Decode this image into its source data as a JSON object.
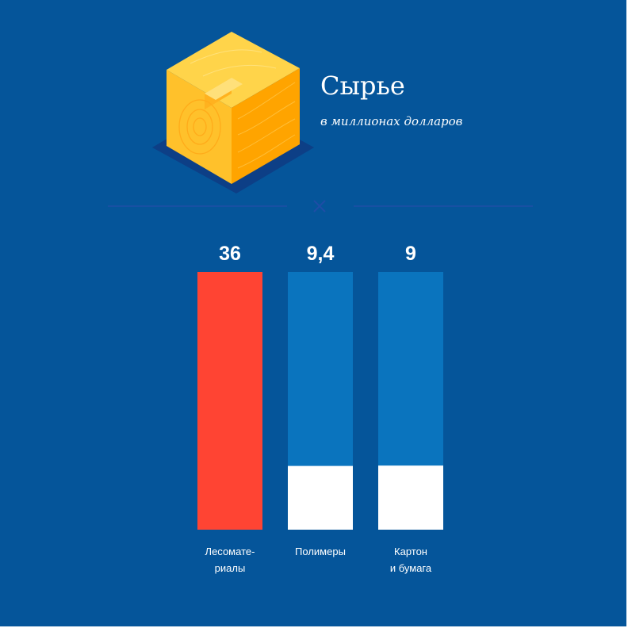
{
  "header": {
    "title": "Сырье",
    "subtitle": "в миллионах долларов"
  },
  "colors": {
    "background": "#05559a",
    "highlight": "#ff4433",
    "bar": "#0a74be",
    "remainder": "#ffffff",
    "cube_top": "#ffd44a",
    "cube_left": "#ffc12b",
    "cube_right": "#ffa400"
  },
  "icon": "wood-cube-icon",
  "chart_data": {
    "type": "bar",
    "title": "Сырье",
    "subtitle": "в миллионах долларов",
    "categories": [
      [
        "Лесомате-",
        "риалы"
      ],
      [
        "Полимеры"
      ],
      [
        "Картон",
        "и бумага"
      ]
    ],
    "values": [
      36,
      9.4,
      9
    ],
    "value_labels": [
      "36",
      "9,4",
      "9"
    ],
    "highlighted_index": 0,
    "note": "Каждый столбец — полная шкала; нижняя белая часть — оставшаяся доля"
  }
}
